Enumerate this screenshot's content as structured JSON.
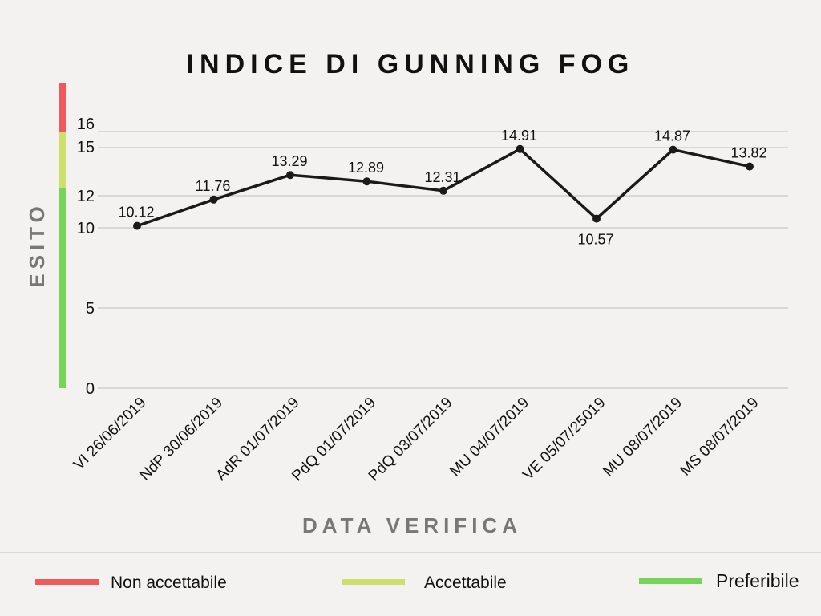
{
  "chart_data": {
    "type": "line",
    "title": "INDICE DI GUNNING FOG",
    "xlabel": "DATA VERIFICA",
    "ylabel": "ESITO",
    "categories": [
      "VI 26/06/2019",
      "NdP 30/06/2019",
      "AdR 01/07/2019",
      "PdQ 01/07/2019",
      "PdQ 03/07/2019",
      "MU 04/07/2019",
      "VE 05/07/25019",
      "MU 08/07/2019",
      "MS 08/07/2019"
    ],
    "values": [
      10.12,
      11.76,
      13.29,
      12.89,
      12.31,
      14.91,
      10.57,
      14.87,
      13.82
    ],
    "data_labels": [
      "10.12",
      "11.76",
      "13.29",
      "12.89",
      "12.31",
      "14.91",
      "10.57",
      "14.87",
      "13.82"
    ],
    "yticks": [
      0,
      5,
      10,
      12,
      15,
      16
    ],
    "ylim": [
      0,
      19
    ],
    "grid": true,
    "line_color": "#1a1a1a",
    "bands": [
      {
        "name": "Non accettabile",
        "from": 16,
        "to": 19,
        "color": "#f05a5a"
      },
      {
        "name": "Accettabile",
        "from": 12.5,
        "to": 16,
        "color": "#cde06c"
      },
      {
        "name": "Preferibile",
        "from": 0,
        "to": 12.5,
        "color": "#77d458"
      }
    ]
  },
  "legend": [
    {
      "label": "Non accettabile",
      "color": "#f05a5a"
    },
    {
      "label": "Accettabile",
      "color": "#cde06c"
    },
    {
      "label": "Preferibile",
      "color": "#77d458"
    }
  ]
}
